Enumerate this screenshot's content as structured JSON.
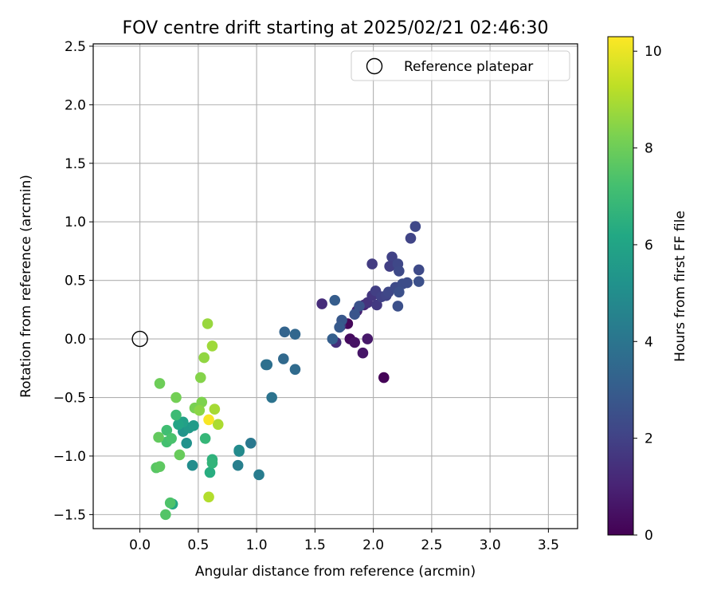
{
  "chart_data": {
    "type": "scatter",
    "title": "FOV centre drift starting at 2025/02/21 02:46:30",
    "xlabel": "Angular distance from reference (arcmin)",
    "ylabel": "Rotation from reference (arcmin)",
    "xlim": [
      -0.4,
      3.75
    ],
    "ylim": [
      -1.62,
      2.52
    ],
    "xticks": [
      "0.0",
      "0.5",
      "1.0",
      "1.5",
      "2.0",
      "2.5",
      "3.0",
      "3.5"
    ],
    "xtick_values": [
      0.0,
      0.5,
      1.0,
      1.5,
      2.0,
      2.5,
      3.0,
      3.5
    ],
    "yticks": [
      "−1.5",
      "−1.0",
      "−0.5",
      "0.0",
      "0.5",
      "1.0",
      "1.5",
      "2.0",
      "2.5"
    ],
    "ytick_values": [
      -1.5,
      -1.0,
      -0.5,
      0.0,
      0.5,
      1.0,
      1.5,
      2.0,
      2.5
    ],
    "grid": true,
    "legend": {
      "position": "top-right",
      "entries": [
        {
          "label": "Reference platepar",
          "marker": "open-circle"
        }
      ]
    },
    "reference_point": {
      "x": 0.0,
      "y": 0.0
    },
    "colorbar": {
      "label": "Hours from first FF file",
      "colormap": "viridis",
      "range": [
        0,
        10.3
      ],
      "ticks": [
        "0",
        "2",
        "4",
        "6",
        "8",
        "10"
      ],
      "tick_values": [
        0,
        2,
        4,
        6,
        8,
        10
      ]
    },
    "series": [
      {
        "points": [
          [
            2.09,
            -0.33,
            0.1
          ],
          [
            1.78,
            0.13,
            0.2
          ],
          [
            1.8,
            0.0,
            0.3
          ],
          [
            1.84,
            -0.03,
            0.5
          ],
          [
            1.91,
            -0.12,
            0.6
          ],
          [
            1.95,
            0.0,
            0.7
          ],
          [
            1.86,
            0.24,
            0.9
          ],
          [
            1.92,
            0.29,
            1.0
          ],
          [
            1.72,
            0.11,
            1.2
          ],
          [
            1.56,
            0.3,
            1.3
          ],
          [
            1.68,
            -0.03,
            1.4
          ],
          [
            1.95,
            0.31,
            1.5
          ],
          [
            1.99,
            0.37,
            1.6
          ],
          [
            2.03,
            0.29,
            1.7
          ],
          [
            1.99,
            0.64,
            1.8
          ],
          [
            2.02,
            0.41,
            1.9
          ],
          [
            2.07,
            0.36,
            2.0
          ],
          [
            2.11,
            0.37,
            2.1
          ],
          [
            2.13,
            0.4,
            2.2
          ],
          [
            2.16,
            0.7,
            2.0
          ],
          [
            2.14,
            0.62,
            1.9
          ],
          [
            2.19,
            0.44,
            2.3
          ],
          [
            2.21,
            0.64,
            2.2
          ],
          [
            2.22,
            0.58,
            2.3
          ],
          [
            2.25,
            0.47,
            2.4
          ],
          [
            2.29,
            0.48,
            2.4
          ],
          [
            2.22,
            0.4,
            2.5
          ],
          [
            2.21,
            0.28,
            2.5
          ],
          [
            2.32,
            0.86,
            2.1
          ],
          [
            2.36,
            0.96,
            2.2
          ],
          [
            2.39,
            0.59,
            2.3
          ],
          [
            2.39,
            0.49,
            2.5
          ],
          [
            1.88,
            0.28,
            2.6
          ],
          [
            1.84,
            0.21,
            2.7
          ],
          [
            1.73,
            0.16,
            2.8
          ],
          [
            1.71,
            0.1,
            2.9
          ],
          [
            1.67,
            0.33,
            3.0
          ],
          [
            1.65,
            0.0,
            3.1
          ],
          [
            1.24,
            0.06,
            3.3
          ],
          [
            1.33,
            0.04,
            3.4
          ],
          [
            1.23,
            -0.17,
            3.5
          ],
          [
            1.33,
            -0.26,
            3.6
          ],
          [
            1.09,
            -0.22,
            3.7
          ],
          [
            1.08,
            -0.22,
            3.8
          ],
          [
            1.13,
            -0.5,
            3.9
          ],
          [
            0.95,
            -0.89,
            4.1
          ],
          [
            1.02,
            -1.16,
            4.3
          ],
          [
            0.84,
            -1.08,
            4.4
          ],
          [
            0.85,
            -0.96,
            4.7
          ],
          [
            0.85,
            -0.95,
            4.9
          ],
          [
            0.45,
            -1.08,
            5.0
          ],
          [
            0.4,
            -0.89,
            5.2
          ],
          [
            0.37,
            -0.79,
            5.3
          ],
          [
            0.42,
            -0.76,
            5.5
          ],
          [
            0.46,
            -0.74,
            5.6
          ],
          [
            0.37,
            -0.71,
            5.8
          ],
          [
            0.33,
            -0.73,
            6.0
          ],
          [
            0.28,
            -1.41,
            6.2
          ],
          [
            0.6,
            -1.14,
            6.4
          ],
          [
            0.62,
            -1.03,
            6.6
          ],
          [
            0.62,
            -1.06,
            6.7
          ],
          [
            0.56,
            -0.85,
            6.8
          ],
          [
            0.31,
            -0.65,
            7.0
          ],
          [
            0.23,
            -0.78,
            7.1
          ],
          [
            0.23,
            -0.88,
            7.2
          ],
          [
            0.27,
            -0.85,
            7.3
          ],
          [
            0.26,
            -1.4,
            7.4
          ],
          [
            0.22,
            -1.5,
            7.5
          ],
          [
            0.14,
            -1.1,
            7.6
          ],
          [
            0.17,
            -1.09,
            7.7
          ],
          [
            0.16,
            -0.84,
            7.8
          ],
          [
            0.34,
            -0.99,
            7.9
          ],
          [
            0.17,
            -0.38,
            8.0
          ],
          [
            0.31,
            -0.5,
            8.1
          ],
          [
            0.47,
            -0.59,
            8.2
          ],
          [
            0.53,
            -0.54,
            8.3
          ],
          [
            0.52,
            -0.33,
            8.4
          ],
          [
            0.51,
            -0.61,
            8.5
          ],
          [
            0.55,
            -0.16,
            8.6
          ],
          [
            0.58,
            0.13,
            8.7
          ],
          [
            0.62,
            -0.06,
            8.8
          ],
          [
            0.64,
            -0.6,
            8.9
          ],
          [
            0.67,
            -0.73,
            9.0
          ],
          [
            0.59,
            -1.35,
            9.1
          ],
          [
            0.59,
            -0.69,
            10.2
          ]
        ]
      }
    ]
  }
}
